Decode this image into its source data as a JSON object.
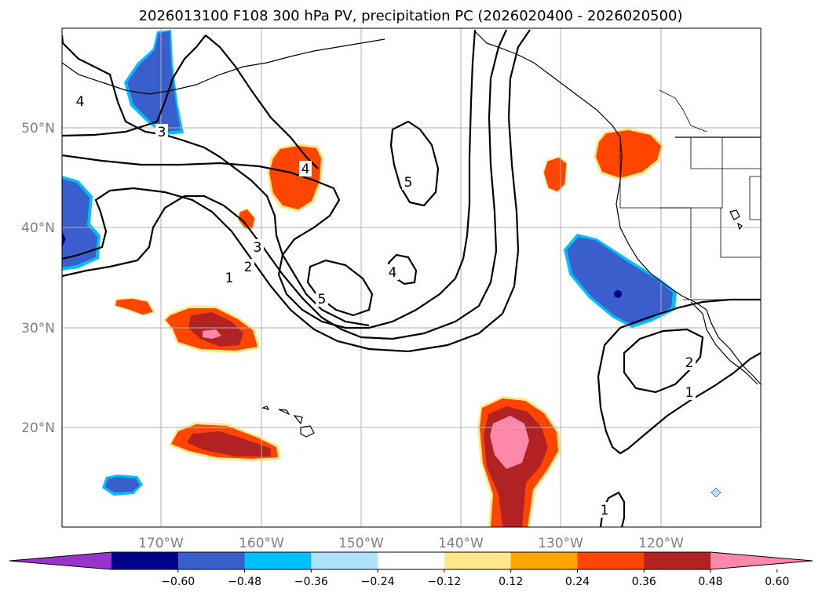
{
  "title": "2026013100 F108 300 hPa PV, precipitation PC (2026020400 - 2026020500)",
  "map": {
    "lon_range": [
      -180,
      -110
    ],
    "lat_range": [
      10,
      60
    ],
    "lat_ticks": [
      {
        "value": 50,
        "label": "50°N"
      },
      {
        "value": 40,
        "label": "40°N"
      },
      {
        "value": 30,
        "label": "30°N"
      },
      {
        "value": 20,
        "label": "20°N"
      }
    ],
    "lon_ticks": [
      {
        "value": -170,
        "label": "170°W"
      },
      {
        "value": -160,
        "label": "160°W"
      },
      {
        "value": -150,
        "label": "150°W"
      },
      {
        "value": -140,
        "label": "140°W"
      },
      {
        "value": -130,
        "label": "130°W"
      },
      {
        "value": -120,
        "label": "120°W"
      }
    ]
  },
  "pv_contour_labels": [
    {
      "id": "pv-label-4-northwest",
      "text": "4"
    },
    {
      "id": "pv-label-3-north",
      "text": "3"
    },
    {
      "id": "pv-label-4-central",
      "text": "4"
    },
    {
      "id": "pv-label-5-north",
      "text": "5"
    },
    {
      "id": "pv-label-3-west",
      "text": "3"
    },
    {
      "id": "pv-label-2-west",
      "text": "2"
    },
    {
      "id": "pv-label-1-west",
      "text": "1"
    },
    {
      "id": "pv-label-4-south",
      "text": "4"
    },
    {
      "id": "pv-label-5-south",
      "text": "5"
    },
    {
      "id": "pv-label-2-east",
      "text": "2"
    },
    {
      "id": "pv-label-1-east",
      "text": "1"
    },
    {
      "id": "pv-label-1-south",
      "text": "1"
    }
  ],
  "colorbar": {
    "labels": [
      "−0.60",
      "−0.48",
      "−0.36",
      "−0.24",
      "−0.12",
      "0.12",
      "0.24",
      "0.36",
      "0.48",
      "0.60"
    ],
    "colors": [
      "#9933cc",
      "#00008b",
      "#3a5fcd",
      "#00bfff",
      "#b0e2ff",
      "#ffffff",
      "#ffe88a",
      "#ffa500",
      "#ff4500",
      "#b22222",
      "#ff88aa"
    ]
  }
}
